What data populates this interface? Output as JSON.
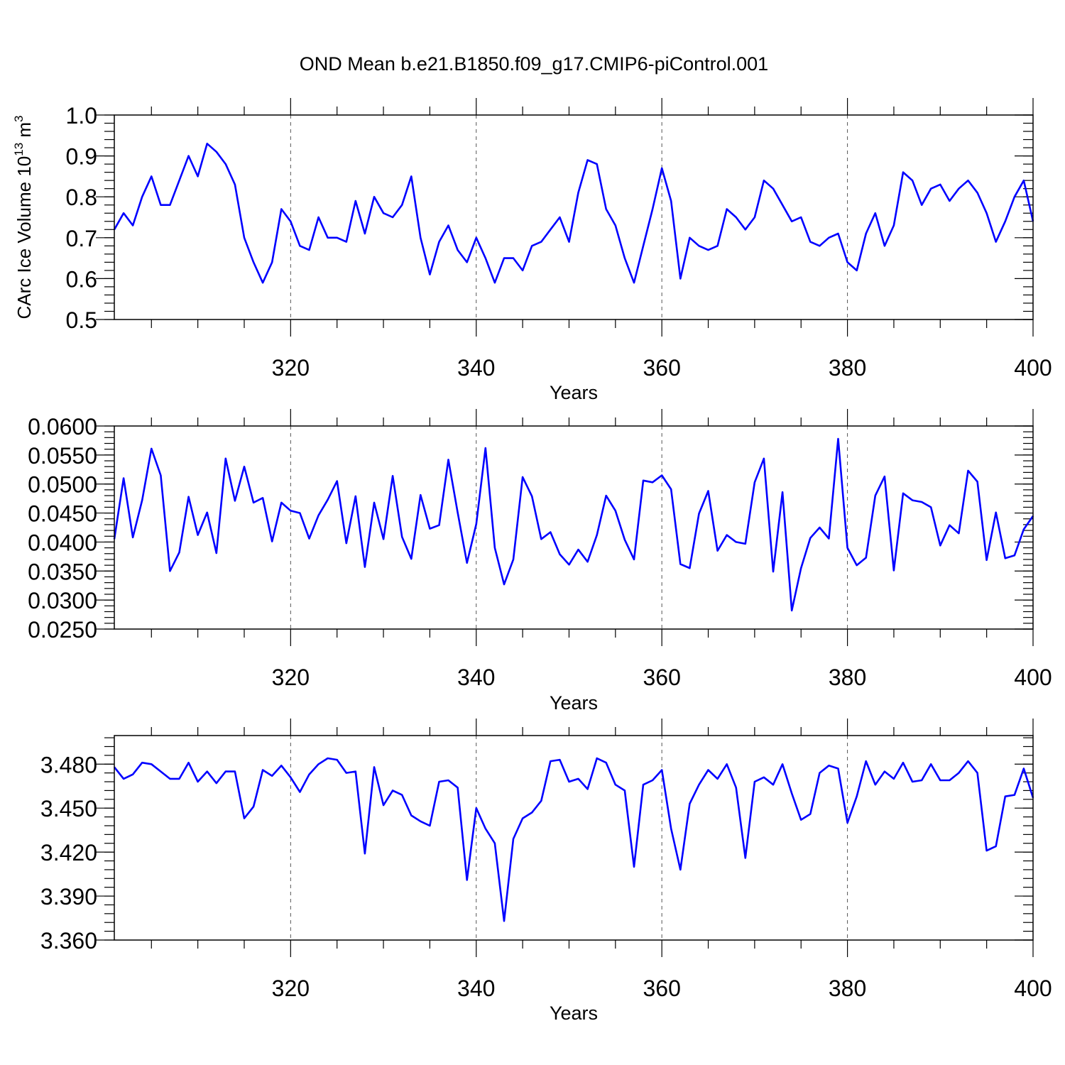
{
  "title": "OND Mean b.e21.B1850.f09_g17.CMIP6-piControl.001",
  "colors": {
    "series": "#0000ff",
    "axes": "#000000",
    "grid": "#555555",
    "background": "#ffffff"
  },
  "chart_data": [
    {
      "type": "line",
      "title": "OND Mean b.e21.B1850.f09_g17.CMIP6-piControl.001",
      "xlabel": "Years",
      "ylabel": "CArc Ice Volume",
      "ylabel_unit_base": "10",
      "ylabel_unit_exp": "13",
      "ylabel_unit_rest": " m",
      "ylabel_unit_power": "3",
      "xlim": [
        301,
        400
      ],
      "ylim": [
        0.5,
        1.0
      ],
      "grid": "vertical dashed at major x ticks",
      "x_major_ticks": [
        320,
        340,
        360,
        380,
        400
      ],
      "x_tick_labels": [
        "320",
        "340",
        "360",
        "380",
        "400"
      ],
      "y_ticks": [
        0.5,
        0.6,
        0.7,
        0.8,
        0.9,
        1.0
      ],
      "y_tick_labels": [
        "0.5",
        "0.6",
        "0.7",
        "0.8",
        "0.9",
        "1.0"
      ],
      "y_minor_step": 0.02,
      "x_start": 301,
      "values": [
        0.72,
        0.76,
        0.73,
        0.8,
        0.85,
        0.78,
        0.78,
        0.84,
        0.9,
        0.85,
        0.93,
        0.91,
        0.88,
        0.83,
        0.7,
        0.64,
        0.59,
        0.64,
        0.77,
        0.74,
        0.68,
        0.67,
        0.75,
        0.7,
        0.7,
        0.69,
        0.79,
        0.71,
        0.8,
        0.76,
        0.75,
        0.78,
        0.85,
        0.7,
        0.61,
        0.69,
        0.73,
        0.67,
        0.64,
        0.7,
        0.65,
        0.59,
        0.65,
        0.65,
        0.62,
        0.68,
        0.69,
        0.72,
        0.75,
        0.69,
        0.81,
        0.89,
        0.88,
        0.77,
        0.73,
        0.65,
        0.59,
        0.68,
        0.77,
        0.87,
        0.79,
        0.6,
        0.7,
        0.68,
        0.67,
        0.68,
        0.77,
        0.75,
        0.72,
        0.75,
        0.84,
        0.82,
        0.78,
        0.74,
        0.75,
        0.69,
        0.68,
        0.7,
        0.71,
        0.64,
        0.62,
        0.71,
        0.76,
        0.68,
        0.73,
        0.86,
        0.84,
        0.78,
        0.82,
        0.83,
        0.79,
        0.82,
        0.84,
        0.81,
        0.76,
        0.69,
        0.74,
        0.8,
        0.84,
        0.74
      ]
    },
    {
      "type": "line",
      "xlabel": "Years",
      "ylabel": "",
      "xlim": [
        301,
        400
      ],
      "ylim": [
        0.025,
        0.06
      ],
      "grid": "vertical dashed at major x ticks",
      "x_major_ticks": [
        320,
        340,
        360,
        380,
        400
      ],
      "x_tick_labels": [
        "320",
        "340",
        "360",
        "380",
        "400"
      ],
      "y_ticks": [
        0.025,
        0.03,
        0.035,
        0.04,
        0.045,
        0.05,
        0.055,
        0.06
      ],
      "y_tick_labels": [
        "0.0250",
        "0.0300",
        "0.0350",
        "0.0400",
        "0.0450",
        "0.0500",
        "0.0550",
        "0.0600"
      ],
      "y_minor_step": 0.001,
      "x_start": 301,
      "values": [
        0.0405,
        0.051,
        0.0408,
        0.0472,
        0.0561,
        0.0515,
        0.035,
        0.0382,
        0.0478,
        0.0412,
        0.0451,
        0.0381,
        0.0544,
        0.0471,
        0.053,
        0.0468,
        0.0476,
        0.0401,
        0.0468,
        0.0454,
        0.045,
        0.0406,
        0.0446,
        0.0473,
        0.0505,
        0.0398,
        0.0479,
        0.0357,
        0.0468,
        0.0405,
        0.0514,
        0.0409,
        0.0371,
        0.0481,
        0.0423,
        0.0429,
        0.0542,
        0.0451,
        0.0364,
        0.0431,
        0.0562,
        0.039,
        0.0327,
        0.037,
        0.0512,
        0.0479,
        0.0405,
        0.0417,
        0.0379,
        0.0361,
        0.0387,
        0.0366,
        0.0412,
        0.048,
        0.0454,
        0.0404,
        0.037,
        0.0506,
        0.0503,
        0.0515,
        0.0491,
        0.0362,
        0.0355,
        0.0449,
        0.0488,
        0.0385,
        0.0412,
        0.04,
        0.0397,
        0.0503,
        0.0544,
        0.0349,
        0.0486,
        0.0282,
        0.0355,
        0.0407,
        0.0425,
        0.0406,
        0.0578,
        0.039,
        0.036,
        0.0373,
        0.048,
        0.0513,
        0.0351,
        0.0484,
        0.0472,
        0.0469,
        0.046,
        0.0394,
        0.0429,
        0.0415,
        0.0523,
        0.0504,
        0.0369,
        0.0451,
        0.0372,
        0.0377,
        0.0422,
        0.0445
      ]
    },
    {
      "type": "line",
      "xlabel": "Years",
      "ylabel": "",
      "xlim": [
        301,
        400
      ],
      "ylim": [
        3.36,
        3.4995
      ],
      "grid": "vertical dashed at major x ticks",
      "x_major_ticks": [
        320,
        340,
        360,
        380,
        400
      ],
      "x_tick_labels": [
        "320",
        "340",
        "360",
        "380",
        "400"
      ],
      "y_ticks": [
        3.36,
        3.39,
        3.42,
        3.45,
        3.48
      ],
      "y_tick_labels": [
        "3.360",
        "3.390",
        "3.420",
        "3.450",
        "3.480"
      ],
      "y_minor_step": 0.006,
      "x_start": 301,
      "values": [
        3.478,
        3.47,
        3.473,
        3.481,
        3.48,
        3.475,
        3.47,
        3.47,
        3.481,
        3.468,
        3.475,
        3.467,
        3.475,
        3.475,
        3.443,
        3.451,
        3.476,
        3.472,
        3.479,
        3.471,
        3.461,
        3.473,
        3.48,
        3.484,
        3.483,
        3.474,
        3.475,
        3.419,
        3.478,
        3.452,
        3.462,
        3.459,
        3.445,
        3.441,
        3.438,
        3.468,
        3.469,
        3.464,
        3.401,
        3.45,
        3.436,
        3.426,
        3.373,
        3.429,
        3.443,
        3.447,
        3.455,
        3.482,
        3.483,
        3.468,
        3.47,
        3.463,
        3.484,
        3.481,
        3.466,
        3.462,
        3.41,
        3.466,
        3.469,
        3.476,
        3.436,
        3.408,
        3.453,
        3.466,
        3.476,
        3.47,
        3.48,
        3.464,
        3.416,
        3.468,
        3.471,
        3.466,
        3.48,
        3.46,
        3.442,
        3.446,
        3.474,
        3.479,
        3.477,
        3.44,
        3.458,
        3.482,
        3.466,
        3.475,
        3.47,
        3.481,
        3.468,
        3.469,
        3.48,
        3.469,
        3.469,
        3.474,
        3.482,
        3.474,
        3.421,
        3.424,
        3.458,
        3.459,
        3.477,
        3.457
      ]
    }
  ]
}
